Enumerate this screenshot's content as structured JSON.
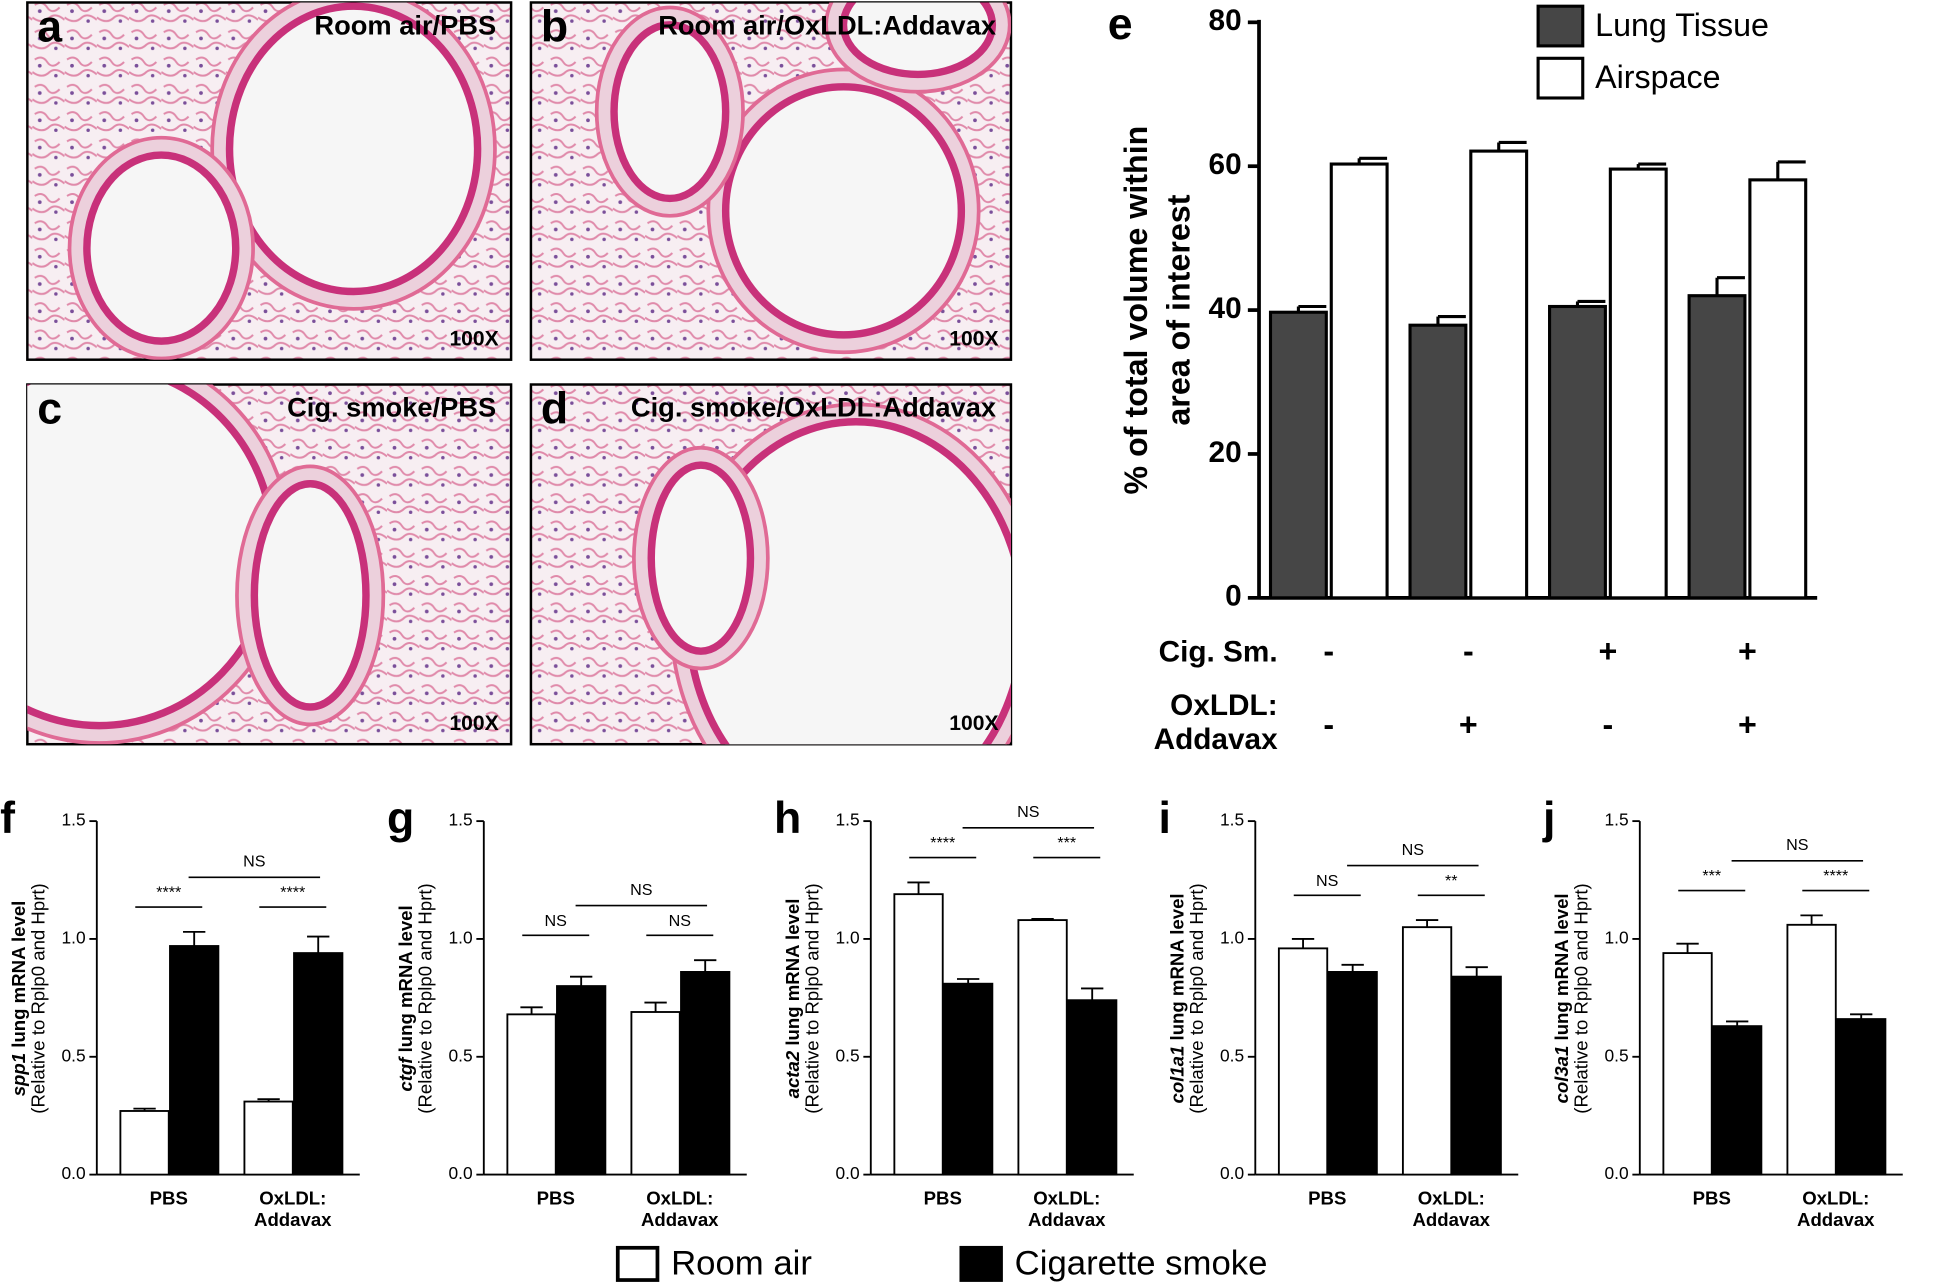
{
  "images": [
    {
      "letter": "a",
      "caption": "Room air/PBS",
      "magnification": "100X"
    },
    {
      "letter": "b",
      "caption": "Room air/OxLDL:Addavax",
      "magnification": "100X"
    },
    {
      "letter": "c",
      "caption": "Cig. smoke/PBS",
      "magnification": "100X"
    },
    {
      "letter": "d",
      "caption": "Cig. smoke/OxLDL:Addavax",
      "magnification": "100X"
    }
  ],
  "chart_data": [
    {
      "type": "bar",
      "panel": "e",
      "ylabel": [
        "% of total volume within",
        "area of interest"
      ],
      "categories": [
        null,
        null,
        null,
        null
      ],
      "series": [
        {
          "name": "Lung Tissue",
          "color": "#464646",
          "values": [
            39.7,
            37.9,
            40.5,
            42.0
          ],
          "errors": [
            0.8,
            1.2,
            0.7,
            2.5
          ]
        },
        {
          "name": "Airspace",
          "color": "#ffffff",
          "values": [
            60.3,
            62.1,
            59.6,
            58.1
          ],
          "errors": [
            0.8,
            1.2,
            0.7,
            2.5
          ]
        }
      ],
      "conditions": [
        {
          "label": "Cig. Sm.",
          "values": [
            "-",
            "-",
            "+",
            "+"
          ]
        },
        {
          "label": "OxLDL:\nAddavax",
          "values": [
            "-",
            "+",
            "-",
            "+"
          ]
        }
      ],
      "ylim": [
        0,
        80
      ],
      "yticks": [
        0,
        20,
        40,
        60,
        80
      ],
      "legend": "top-right"
    },
    {
      "type": "bar",
      "panel": "f",
      "gene": "spp1",
      "ylabel": " lung mRNA level",
      "ylabel2": "(Relative to Rplp0 and Hprt)",
      "categories": [
        "PBS",
        "OxLDL:\nAddavax"
      ],
      "series": [
        {
          "name": "Room air",
          "color": "#ffffff",
          "values": [
            0.27,
            0.31
          ],
          "errors": [
            0.01,
            0.01
          ]
        },
        {
          "name": "Cigarette smoke",
          "color": "#000000",
          "values": [
            0.97,
            0.94
          ],
          "errors": [
            0.06,
            0.07
          ]
        }
      ],
      "significance": [
        "****",
        "****",
        "NS"
      ],
      "ylim": [
        0,
        1.5
      ],
      "yticks": [
        {
          "value": 0,
          "label": "0.0"
        },
        0.5,
        {
          "value": 1,
          "label": "1.0"
        },
        1.5
      ]
    },
    {
      "type": "bar",
      "panel": "g",
      "gene": "ctgf",
      "ylabel": " lung mRNA level",
      "ylabel2": "(Relative to Rplp0 and Hprt)",
      "categories": [
        "PBS",
        "OxLDL:\nAddavax"
      ],
      "series": [
        {
          "color": "#ffffff",
          "values": [
            0.68,
            0.69
          ],
          "errors": [
            0.03,
            0.04
          ]
        },
        {
          "color": "#000000",
          "values": [
            0.8,
            0.86
          ],
          "errors": [
            0.04,
            0.05
          ]
        }
      ],
      "significance": [
        "NS",
        "NS",
        "NS"
      ],
      "ylim": [
        0,
        1.5
      ],
      "yticks": [
        {
          "value": 0,
          "label": "0.0"
        },
        0.5,
        {
          "value": 1,
          "label": "1.0"
        },
        1.5
      ]
    },
    {
      "type": "bar",
      "panel": "h",
      "gene": "acta2",
      "ylabel": " lung mRNA level",
      "ylabel2": "(Relative to Rplp0 and Hprt)",
      "categories": [
        "PBS",
        "OxLDL:\nAddavax"
      ],
      "series": [
        {
          "color": "#ffffff",
          "values": [
            1.19,
            1.08
          ],
          "errors": [
            0.05,
            0.005
          ]
        },
        {
          "color": "#000000",
          "values": [
            0.81,
            0.74
          ],
          "errors": [
            0.02,
            0.05
          ]
        }
      ],
      "significance": [
        "****",
        "***",
        "NS"
      ],
      "ylim": [
        0,
        1.5
      ],
      "yticks": [
        {
          "value": 0,
          "label": "0.0"
        },
        0.5,
        {
          "value": 1,
          "label": "1.0"
        },
        1.5
      ]
    },
    {
      "type": "bar",
      "panel": "i",
      "gene": "col1a1",
      "ylabel": " lung mRNA level",
      "ylabel2": "(Relative to Rplp0 and Hprt)",
      "categories": [
        "PBS",
        "OxLDL:\nAddavax"
      ],
      "series": [
        {
          "color": "#ffffff",
          "values": [
            0.96,
            1.05
          ],
          "errors": [
            0.04,
            0.03
          ]
        },
        {
          "color": "#000000",
          "values": [
            0.86,
            0.84
          ],
          "errors": [
            0.03,
            0.04
          ]
        }
      ],
      "significance": [
        "NS",
        "**",
        "NS"
      ],
      "ylim": [
        0,
        1.5
      ],
      "yticks": [
        {
          "value": 0,
          "label": "0.0"
        },
        0.5,
        {
          "value": 1,
          "label": "1.0"
        },
        1.5
      ]
    },
    {
      "type": "bar",
      "panel": "j",
      "gene": "col3a1",
      "ylabel": " lung mRNA level",
      "ylabel2": "(Relative to Rplp0 and Hprt)",
      "categories": [
        "PBS",
        "OxLDL:\nAddavax"
      ],
      "series": [
        {
          "color": "#ffffff",
          "values": [
            0.94,
            1.06
          ],
          "errors": [
            0.04,
            0.04
          ]
        },
        {
          "color": "#000000",
          "values": [
            0.63,
            0.66
          ],
          "errors": [
            0.02,
            0.02
          ]
        }
      ],
      "significance": [
        "***",
        "****",
        "NS"
      ],
      "ylim": [
        0,
        1.5
      ],
      "yticks": [
        {
          "value": 0,
          "label": "0.0"
        },
        0.5,
        {
          "value": 1,
          "label": "1.0"
        },
        1.5
      ]
    }
  ]
}
